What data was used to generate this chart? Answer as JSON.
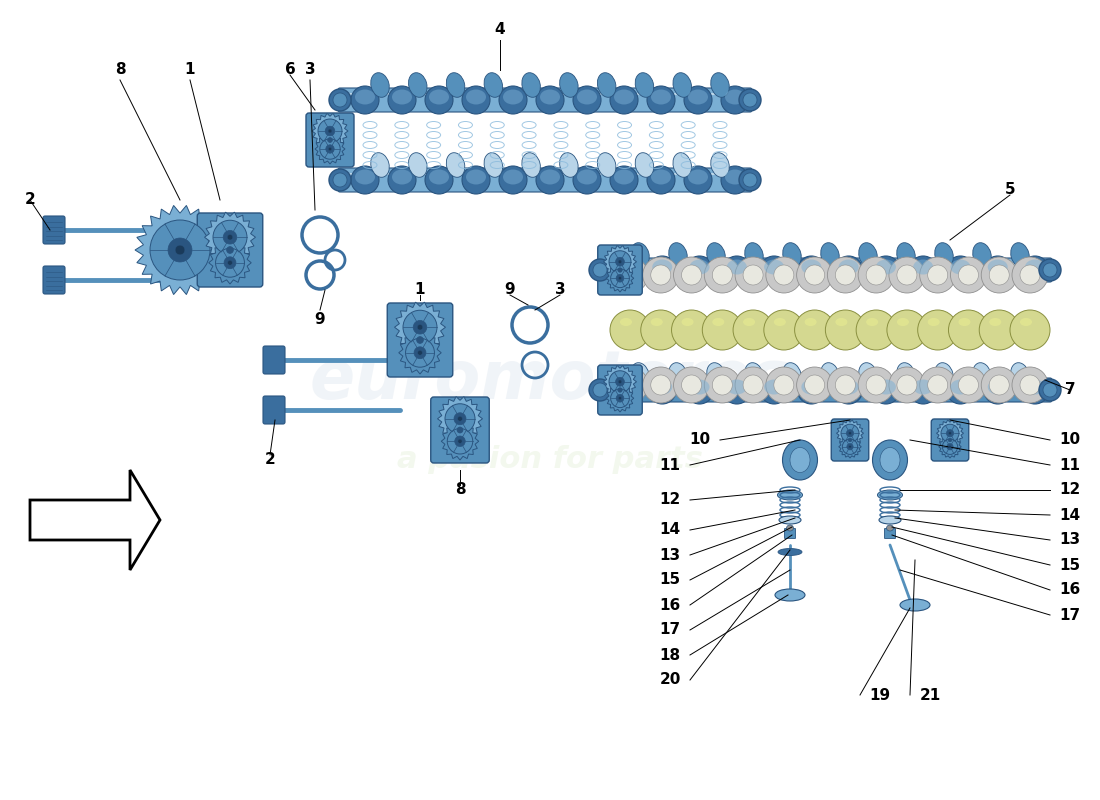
{
  "background_color": "#ffffff",
  "watermark1": "euromotores",
  "watermark2": "a pasion for parts",
  "blue1": "#7aafd4",
  "blue2": "#5590bb",
  "blue3": "#3a6e9e",
  "blue_dark": "#2a5580",
  "blue_light": "#b8d4e8",
  "cream": "#e8e0c8",
  "yellow_green": "#d4d890",
  "gray1": "#c8c8c8",
  "gray2": "#909090",
  "label_fs": 11,
  "lw_leader": 0.7
}
